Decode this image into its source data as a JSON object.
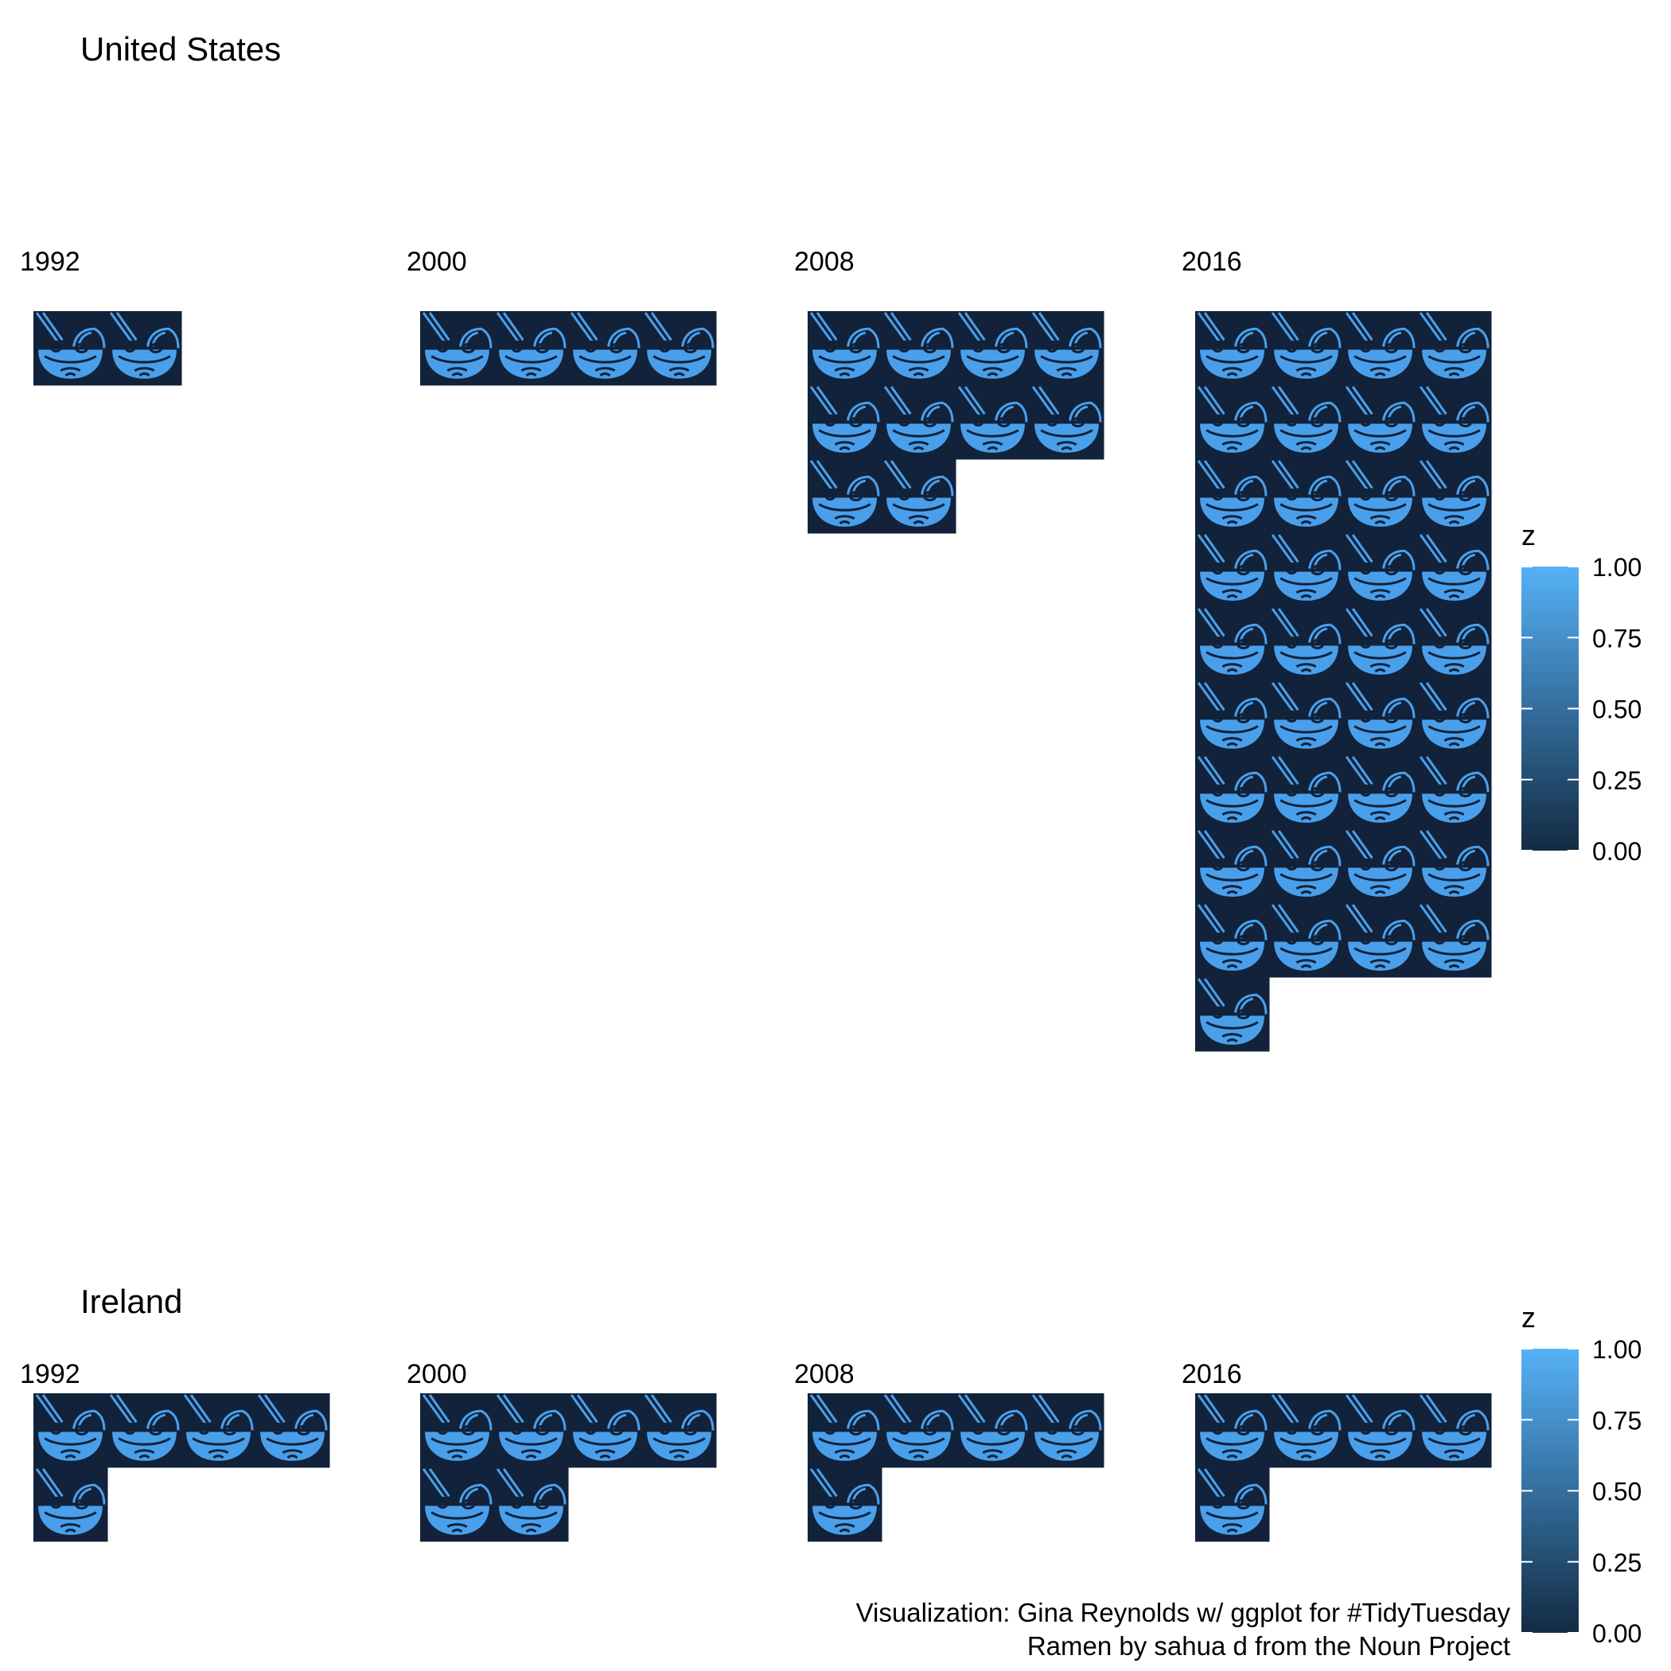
{
  "chart_data": [
    {
      "type": "waffle",
      "title": "United States",
      "facets": [
        {
          "label": "1992",
          "value": 2
        },
        {
          "label": "2000",
          "value": 4
        },
        {
          "label": "2008",
          "value": 10
        },
        {
          "label": "2016",
          "value": 37
        }
      ],
      "columns": 4,
      "fill_value": 0,
      "icon_value": 1,
      "legend": {
        "title": "z",
        "ticks": [
          "1.00",
          "0.75",
          "0.50",
          "0.25",
          "0.00"
        ],
        "limits": [
          0,
          1
        ],
        "position": "right"
      }
    },
    {
      "type": "waffle",
      "title": "Ireland",
      "facets": [
        {
          "label": "1992",
          "value": 5
        },
        {
          "label": "2000",
          "value": 6
        },
        {
          "label": "2008",
          "value": 5
        },
        {
          "label": "2016",
          "value": 5
        }
      ],
      "columns": 4,
      "fill_value": 0,
      "icon_value": 1,
      "legend": {
        "title": "z",
        "ticks": [
          "1.00",
          "0.75",
          "0.50",
          "0.25",
          "0.00"
        ],
        "limits": [
          0,
          1
        ],
        "position": "right"
      }
    }
  ],
  "colors": {
    "low": "#132B43",
    "high": "#56B1F7",
    "tile": "#11223A",
    "icon": "#4A9FEB"
  },
  "caption": [
    "Visualization: Gina Reynolds w/ ggplot for #TidyTuesday",
    "Ramen by sahua d from the Noun Project"
  ]
}
